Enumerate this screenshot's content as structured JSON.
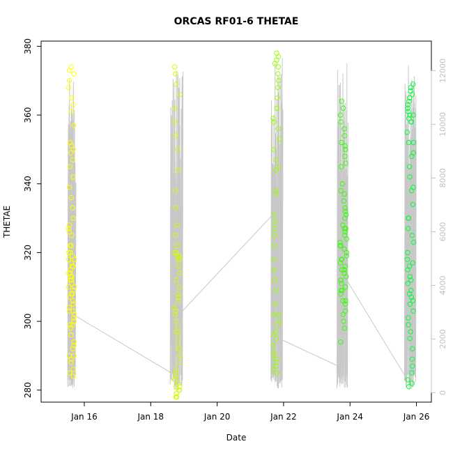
{
  "chart_data": {
    "type": "scatter",
    "title": "ORCAS RF01-6 THETAE",
    "xlabel": "Date",
    "ylabel": "THETAE",
    "x_ticks": [
      {
        "day": 16,
        "label": "Jan 16"
      },
      {
        "day": 18,
        "label": "Jan 18"
      },
      {
        "day": 20,
        "label": "Jan 20"
      },
      {
        "day": 22,
        "label": "Jan 22"
      },
      {
        "day": 24,
        "label": "Jan 24"
      },
      {
        "day": 26,
        "label": "Jan 26"
      }
    ],
    "xlim": [
      14.7,
      26.45
    ],
    "ylim": [
      276.5,
      381.5
    ],
    "y_ticks": [
      280,
      300,
      320,
      340,
      360,
      380
    ],
    "y2lim": [
      -350,
      13100
    ],
    "y2_ticks": [
      0,
      2000,
      4000,
      6000,
      8000,
      10000,
      12000
    ],
    "y2_color": "#c0c0c0",
    "point_colors": [
      "#ffff00",
      "#ccff00",
      "#99ff00",
      "#66ff00",
      "#33ff00",
      "#00ff33"
    ],
    "flights": [
      {
        "center": 15.62,
        "spread": 0.09,
        "color": "#ffff00",
        "thetae": [
          374,
          372,
          370,
          365,
          361,
          352,
          350,
          347,
          345,
          342,
          339,
          336,
          330,
          326,
          322,
          320,
          318,
          317,
          316,
          315,
          314,
          313,
          312,
          311,
          310,
          309,
          308,
          306,
          305,
          303,
          302,
          301,
          300,
          299,
          298,
          296,
          294,
          292,
          290,
          289,
          288,
          286,
          285,
          284,
          319,
          316,
          313,
          308,
          304,
          351,
          349,
          328,
          325,
          322,
          320,
          318,
          316,
          314,
          312,
          310,
          307,
          303,
          299,
          296,
          293,
          290,
          373,
          368,
          363,
          357,
          333,
          327
        ]
      },
      {
        "center": 18.8,
        "spread": 0.08,
        "color": "#ccff00",
        "thetae": [
          374,
          372,
          369,
          366,
          362,
          358,
          354,
          350,
          344,
          338,
          333,
          328,
          325,
          322,
          320,
          319,
          318,
          316,
          314,
          312,
          310,
          308,
          306,
          304,
          302,
          300,
          298,
          296,
          294,
          292,
          290,
          288,
          286,
          284,
          282,
          281,
          280,
          279,
          278,
          278,
          279,
          280,
          281,
          283,
          285,
          320,
          319,
          318,
          307,
          303,
          297,
          292
        ]
      },
      {
        "center": 21.78,
        "spread": 0.1,
        "color": "#99ff00",
        "thetae": [
          378,
          377,
          376,
          375,
          374,
          372,
          370,
          368,
          365,
          362,
          359,
          356,
          353,
          350,
          347,
          344,
          338,
          331,
          329,
          327,
          325,
          322,
          318,
          315,
          312,
          309,
          305,
          302,
          299,
          296,
          293,
          291,
          290,
          289,
          288,
          287,
          286,
          285,
          302,
          300,
          297,
          295,
          362,
          358,
          345,
          337
        ]
      },
      {
        "center": 23.8,
        "spread": 0.1,
        "color": "#33ff00",
        "thetae": [
          364,
          362,
          360,
          358,
          356,
          354,
          352,
          350,
          348,
          346,
          340,
          337,
          335,
          333,
          331,
          330,
          328,
          327,
          326,
          325,
          324,
          323,
          322,
          321,
          320,
          319,
          318,
          317,
          316,
          315,
          314,
          313,
          312,
          311,
          310,
          309,
          308,
          306,
          305,
          303,
          302,
          300,
          298,
          294,
          351,
          345,
          338,
          332,
          327,
          322,
          318,
          315,
          312,
          309,
          306
        ]
      },
      {
        "center": 25.82,
        "spread": 0.1,
        "color": "#00ff33",
        "thetae": [
          369,
          368,
          367,
          366,
          365,
          364,
          363,
          362,
          361,
          360,
          359,
          358,
          355,
          352,
          349,
          345,
          342,
          338,
          334,
          330,
          327,
          323,
          320,
          317,
          315,
          313,
          311,
          309,
          307,
          305,
          303,
          301,
          299,
          297,
          295,
          292,
          289,
          287,
          285,
          283,
          282,
          281,
          360,
          358,
          352,
          348,
          339,
          330,
          325,
          318,
          316,
          312,
          308,
          306
        ]
      }
    ],
    "altitude_line": {
      "color": "#c8c8c8",
      "x": [
        15.55,
        15.68,
        18.6,
        18.74,
        18.92,
        21.65,
        21.77,
        21.9,
        23.63,
        23.76,
        23.9,
        25.67,
        25.79,
        25.94
      ],
      "alt": [
        2800,
        2900,
        750,
        1200,
        3000,
        6600,
        7000,
        2000,
        1000,
        1500,
        4200,
        600,
        900,
        11800
      ]
    },
    "altitude_spikes": [
      {
        "from": 15.5,
        "to": 15.72,
        "low": 150,
        "high": 12000
      },
      {
        "from": 18.58,
        "to": 18.96,
        "low": 100,
        "high": 12100
      },
      {
        "from": 21.62,
        "to": 21.96,
        "low": 150,
        "high": 12600
      },
      {
        "from": 23.6,
        "to": 23.92,
        "low": 150,
        "high": 12500
      },
      {
        "from": 25.64,
        "to": 25.98,
        "low": 150,
        "high": 12200
      }
    ]
  }
}
